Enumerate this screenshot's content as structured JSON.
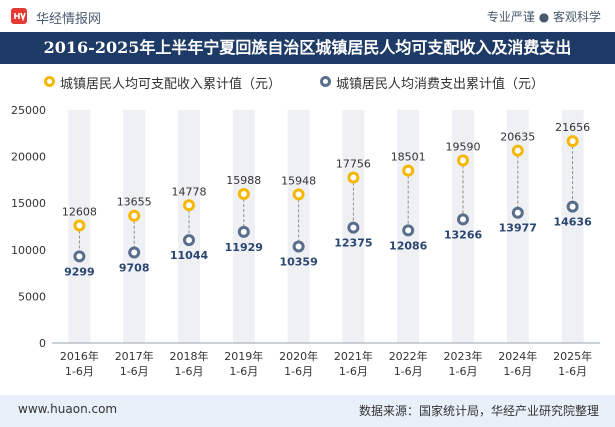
{
  "header": {
    "brand": "华经情报网",
    "tagline": "专业严谨 ● 客观科学",
    "title": "2016-2025年上半年宁夏回族自治区城镇居民人均可支配收入及消费支出"
  },
  "colors": {
    "title_bg": "#1e3a66",
    "series1": "#f5b800",
    "series2": "#5a6e8c",
    "column_bg": "#eef0f3",
    "footer_bg": "#e8f0f9"
  },
  "legend": [
    {
      "label": "城镇居民人均可支配收入累计值（元）"
    },
    {
      "label": "城镇居民人均消费支出累计值（元）"
    }
  ],
  "chart_data": {
    "type": "scatter",
    "categories": [
      "2016年\n1-6月",
      "2017年\n1-6月",
      "2018年\n1-6月",
      "2019年\n1-6月",
      "2020年\n1-6月",
      "2021年\n1-6月",
      "2022年\n1-6月",
      "2023年\n1-6月",
      "2024年\n1-6月",
      "2025年\n1-6月"
    ],
    "series": [
      {
        "name": "城镇居民人均可支配收入累计值（元）",
        "values": [
          12608,
          13655,
          14778,
          15988,
          15948,
          17756,
          18501,
          19590,
          20635,
          21656
        ]
      },
      {
        "name": "城镇居民人均消费支出累计值（元）",
        "values": [
          9299,
          9708,
          11044,
          11929,
          10359,
          12375,
          12086,
          13266,
          13977,
          14636
        ]
      }
    ],
    "yticks": [
      0,
      5000,
      10000,
      15000,
      20000,
      25000
    ],
    "ylim": [
      0,
      25000
    ]
  },
  "footer": {
    "website": "www.huaon.com",
    "source": "数据来源：国家统计局，华经产业研究院整理"
  }
}
